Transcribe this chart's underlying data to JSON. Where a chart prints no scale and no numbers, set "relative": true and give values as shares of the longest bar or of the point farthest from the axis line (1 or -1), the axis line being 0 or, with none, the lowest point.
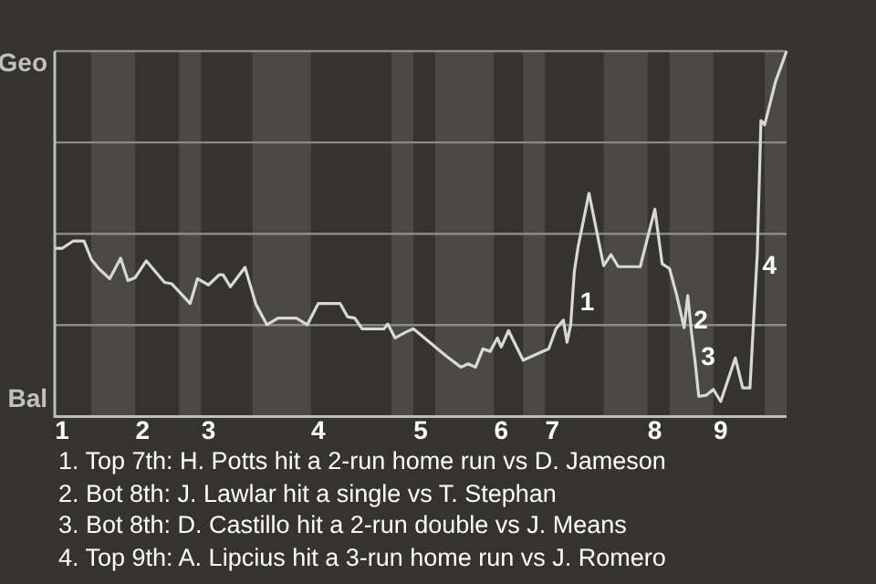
{
  "chart_data": {
    "type": "line",
    "relative": true,
    "categories": [
      null,
      null,
      "1",
      null,
      null,
      null,
      null,
      null,
      null,
      null,
      null,
      null,
      null,
      null,
      null,
      null,
      null,
      null,
      null,
      null,
      null,
      null,
      null,
      null,
      "2",
      null,
      null,
      null,
      null,
      null,
      null,
      null,
      null,
      null,
      null,
      null,
      null,
      null,
      null,
      null,
      null,
      null,
      "3",
      null,
      null,
      null,
      null,
      null,
      null,
      null,
      null,
      null,
      null,
      null,
      null,
      null,
      null,
      null,
      null,
      null,
      null,
      null,
      null,
      null,
      null,
      null,
      null,
      null,
      null,
      null,
      null,
      null,
      "4",
      null,
      null,
      null,
      null,
      null,
      null,
      null,
      null,
      null,
      null,
      null,
      null,
      null,
      null,
      null,
      null,
      null,
      null,
      null,
      null,
      null,
      null,
      null,
      null,
      null,
      null,
      null,
      "5",
      null,
      null,
      null,
      null,
      null,
      null,
      null,
      null,
      null,
      null,
      null,
      null,
      null,
      null,
      null,
      null,
      null,
      null,
      null,
      null,
      null,
      "6",
      null,
      null,
      null,
      null,
      null,
      null,
      null,
      null,
      null,
      null,
      null,
      null,
      null,
      "7",
      null,
      null,
      null,
      null,
      null,
      null,
      null,
      null,
      null,
      null,
      null,
      null,
      null,
      null,
      null,
      null,
      null,
      null,
      null,
      null,
      null,
      null,
      null,
      null,
      null,
      null,
      null,
      "8",
      null,
      null,
      null,
      null,
      null,
      null,
      null,
      null,
      null,
      null,
      null,
      null,
      null,
      null,
      null,
      null,
      null,
      "9",
      null,
      null,
      null,
      null,
      null,
      null,
      null,
      null,
      null,
      null,
      null,
      null,
      null,
      null,
      null,
      null,
      null,
      null
    ],
    "series": [
      {
        "color": "#d8d8d8",
        "values": [
          0.46,
          null,
          0.46,
          null,
          null,
          0.48,
          null,
          null,
          0.48,
          null,
          0.43,
          null,
          0.405,
          null,
          null,
          0.377,
          null,
          null,
          0.433,
          null,
          0.372,
          null,
          0.38,
          null,
          null,
          0.426,
          null,
          null,
          null,
          null,
          0.367,
          null,
          0.363,
          null,
          null,
          null,
          null,
          0.309,
          null,
          0.377,
          null,
          null,
          0.36,
          null,
          null,
          0.388,
          0.388,
          null,
          0.355,
          null,
          null,
          null,
          0.408,
          null,
          null,
          0.306,
          null,
          null,
          0.251,
          null,
          null,
          0.269,
          null,
          null,
          null,
          null,
          0.269,
          null,
          null,
          0.251,
          null,
          null,
          0.309,
          null,
          null,
          null,
          null,
          null,
          0.309,
          null,
          0.273,
          null,
          0.269,
          null,
          0.24,
          null,
          null,
          null,
          null,
          null,
          0.24,
          0.253,
          null,
          0.215,
          null,
          null,
          0.231,
          null,
          0.24,
          null,
          null,
          null,
          null,
          null,
          0.19,
          null,
          null,
          0.165,
          null,
          null,
          null,
          0.135,
          null,
          0.144,
          null,
          0.135,
          null,
          0.185,
          null,
          0.178,
          null,
          0.215,
          0.19,
          null,
          0.235,
          null,
          null,
          null,
          0.154,
          null,
          null,
          null,
          null,
          null,
          null,
          0.185,
          null,
          0.24,
          null,
          0.264,
          0.203,
          0.251,
          0.397,
          0.463,
          null,
          null,
          0.611,
          null,
          null,
          null,
          0.413,
          null,
          0.443,
          null,
          0.41,
          null,
          null,
          null,
          null,
          null,
          0.41,
          null,
          null,
          null,
          0.567,
          null,
          0.418,
          null,
          0.405,
          null,
          0.331,
          null,
          0.243,
          0.331,
          0.231,
          0.15,
          0.055,
          null,
          0.058,
          null,
          0.074,
          null,
          0.041,
          null,
          null,
          null,
          0.16,
          null,
          0.078,
          null,
          0.078,
          0.264,
          0.446,
          0.81,
          0.798,
          null,
          null,
          0.917,
          null,
          null,
          1.0
        ]
      }
    ],
    "ref_lines": [
      {
        "axis": "y",
        "value": 0.25,
        "color": "#8a8986"
      },
      {
        "axis": "y",
        "value": 0.5,
        "color": "#8a8986"
      },
      {
        "axis": "y",
        "value": 0.75,
        "color": "#8a8986"
      },
      {
        "axis": "y",
        "value": 1,
        "color": "#8a8986"
      }
    ],
    "annotations": [
      "Geo",
      "Bal",
      "1",
      "2",
      "3",
      "4",
      "1. Top 7th: H. Potts hit a 2-run home run vs D. Jameson",
      "2. Bot 8th: J. Lawlar hit a single vs T. Stephan",
      "3. Bot 8th: D. Castillo hit a 2-run double vs J. Means",
      "4. Top 9th: A. Lipcius hit a 3-run home run vs J. Romero"
    ]
  }
}
